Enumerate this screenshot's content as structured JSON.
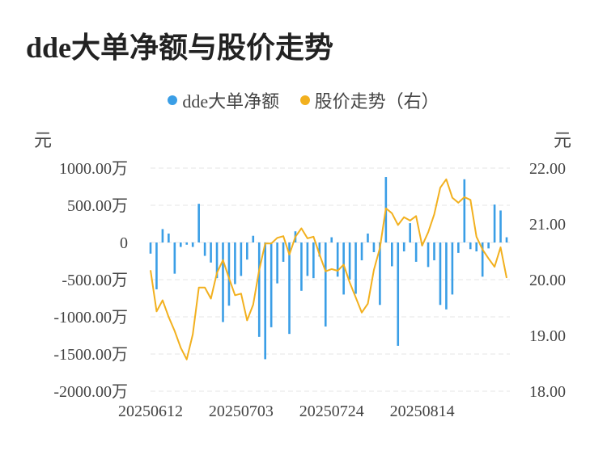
{
  "title": "dde大单净额与股价走势",
  "legend": [
    {
      "label": "dde大单净额",
      "color": "#3a9ee6"
    },
    {
      "label": "股价走势（右）",
      "color": "#f2b01e"
    }
  ],
  "units": {
    "left": "元",
    "right": "元"
  },
  "chart_data": {
    "type": "bar+line",
    "title": "dde大单净额与股价走势",
    "categories": [
      "20250612",
      "20250613",
      "20250616",
      "20250617",
      "20250618",
      "20250619",
      "20250620",
      "20250623",
      "20250624",
      "20250625",
      "20250626",
      "20250627",
      "20250630",
      "20250701",
      "20250702",
      "20250703",
      "20250704",
      "20250707",
      "20250708",
      "20250709",
      "20250710",
      "20250711",
      "20250714",
      "20250715",
      "20250716",
      "20250717",
      "20250718",
      "20250721",
      "20250722",
      "20250723",
      "20250724",
      "20250725",
      "20250728",
      "20250729",
      "20250730",
      "20250731",
      "20250801",
      "20250804",
      "20250805",
      "20250806",
      "20250807",
      "20250808",
      "20250811",
      "20250812",
      "20250813",
      "20250814",
      "20250815",
      "20250818",
      "20250819",
      "20250820",
      "20250821",
      "20250822",
      "20250825",
      "20250826",
      "20250827",
      "20250828",
      "20250829",
      "20250901",
      "20250902",
      "20250903"
    ],
    "x_tick_labels": [
      "20250612",
      "20250703",
      "20250724",
      "20250814"
    ],
    "y_left": {
      "ticks": [
        "1000.00万",
        "500.00万",
        "0",
        "-500.00万",
        "-1000.00万",
        "-1500.00万",
        "-2000.00万"
      ],
      "min": -2000,
      "max": 1000
    },
    "y_right": {
      "ticks": [
        "22.00",
        "21.00",
        "20.00",
        "19.00",
        "18.00"
      ],
      "min": 18,
      "max": 22
    },
    "series": [
      {
        "name": "dde大单净额",
        "type": "bar",
        "color": "#3a9ee6",
        "values": [
          -150,
          -630,
          180,
          120,
          -420,
          -60,
          -30,
          -60,
          520,
          -180,
          -270,
          -480,
          -1070,
          -850,
          -560,
          -450,
          -230,
          90,
          -1270,
          -1570,
          -1140,
          -550,
          -260,
          -1230,
          150,
          -650,
          -450,
          -480,
          -190,
          -1130,
          70,
          -460,
          -700,
          -500,
          -690,
          -240,
          120,
          -130,
          -840,
          880,
          -320,
          -1390,
          -120,
          260,
          -260,
          -40,
          -330,
          -240,
          -840,
          -900,
          -700,
          -140,
          850,
          -90,
          -120,
          -460,
          -80,
          510,
          430,
          70
        ]
      },
      {
        "name": "股价走势（右）",
        "type": "line",
        "color": "#f2b01e",
        "values": [
          20.17,
          19.43,
          19.63,
          19.33,
          19.08,
          18.78,
          18.57,
          19.02,
          19.86,
          19.86,
          19.66,
          20.12,
          20.35,
          20.03,
          19.72,
          19.75,
          19.27,
          19.55,
          20.17,
          20.65,
          20.65,
          20.75,
          20.78,
          20.45,
          20.77,
          20.92,
          20.74,
          20.77,
          20.45,
          20.15,
          20.19,
          20.16,
          20.27,
          19.95,
          19.68,
          19.41,
          19.57,
          20.17,
          20.57,
          21.28,
          21.19,
          20.98,
          21.12,
          21.06,
          21.14,
          20.61,
          20.85,
          21.17,
          21.65,
          21.8,
          21.47,
          21.38,
          21.48,
          21.43,
          20.77,
          20.54,
          20.38,
          20.23,
          20.58,
          20.03
        ]
      }
    ]
  }
}
